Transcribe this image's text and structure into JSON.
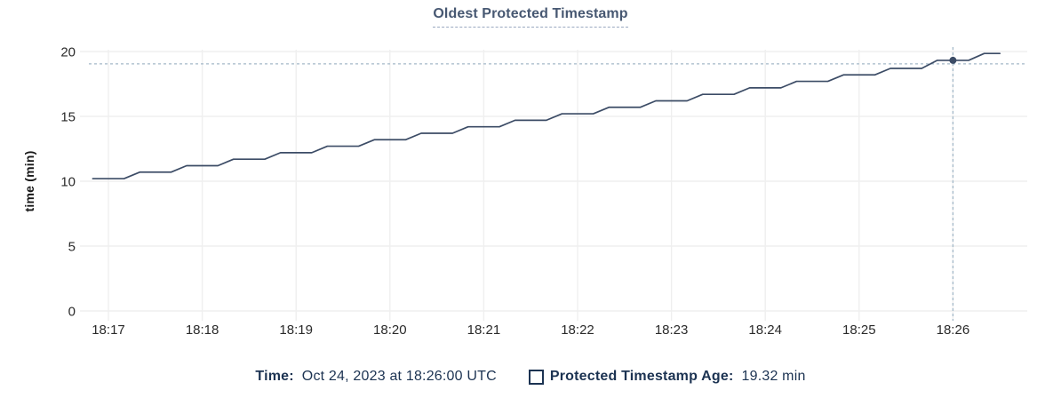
{
  "title": "Oldest Protected Timestamp",
  "legend": {
    "time_label": "Time:",
    "time_value": "Oct 24, 2023 at 18:26:00 UTC",
    "series_label": "Protected Timestamp Age:",
    "series_value": "19.32 min",
    "series_swatch": "square-outline"
  },
  "colors": {
    "line": "#3c4c66",
    "dot": "#3c4c66",
    "title_text": "#475872",
    "legend_text": "#1c3352",
    "axis_text": "#2a2a2a",
    "grid": "#efefef",
    "crosshair": "#a4b9c9",
    "background": "#ffffff"
  },
  "chart_data": {
    "type": "line",
    "title": "Oldest Protected Timestamp",
    "xlabel": "",
    "ylabel": "time (min)",
    "ylim": [
      0,
      20
    ],
    "y_ticks": [
      0,
      5,
      10,
      15,
      20
    ],
    "x_ticks": [
      "18:17",
      "18:18",
      "18:19",
      "18:20",
      "18:21",
      "18:22",
      "18:23",
      "18:24",
      "18:25",
      "18:26"
    ],
    "x_tick_interval_sec": 60,
    "x_unit": "seconds since 18:17:00 UTC",
    "grid": true,
    "legend_position": "bottom",
    "series": [
      {
        "name": "Protected Timestamp Age",
        "unit": "min",
        "points": [
          [
            -10,
            10.2
          ],
          [
            0,
            10.2
          ],
          [
            10,
            10.2
          ],
          [
            20,
            10.7
          ],
          [
            30,
            10.7
          ],
          [
            40,
            10.7
          ],
          [
            50,
            11.2
          ],
          [
            60,
            11.2
          ],
          [
            70,
            11.2
          ],
          [
            80,
            11.7
          ],
          [
            90,
            11.7
          ],
          [
            100,
            11.7
          ],
          [
            110,
            12.2
          ],
          [
            120,
            12.2
          ],
          [
            130,
            12.2
          ],
          [
            140,
            12.7
          ],
          [
            150,
            12.7
          ],
          [
            160,
            12.7
          ],
          [
            170,
            13.2
          ],
          [
            180,
            13.2
          ],
          [
            190,
            13.2
          ],
          [
            200,
            13.7
          ],
          [
            210,
            13.7
          ],
          [
            220,
            13.7
          ],
          [
            230,
            14.2
          ],
          [
            240,
            14.2
          ],
          [
            250,
            14.2
          ],
          [
            260,
            14.7
          ],
          [
            270,
            14.7
          ],
          [
            280,
            14.7
          ],
          [
            290,
            15.2
          ],
          [
            300,
            15.2
          ],
          [
            310,
            15.2
          ],
          [
            320,
            15.7
          ],
          [
            330,
            15.7
          ],
          [
            340,
            15.7
          ],
          [
            350,
            16.2
          ],
          [
            360,
            16.2
          ],
          [
            370,
            16.2
          ],
          [
            380,
            16.7
          ],
          [
            390,
            16.7
          ],
          [
            400,
            16.7
          ],
          [
            410,
            17.2
          ],
          [
            420,
            17.2
          ],
          [
            430,
            17.2
          ],
          [
            440,
            17.7
          ],
          [
            450,
            17.7
          ],
          [
            460,
            17.7
          ],
          [
            470,
            18.2
          ],
          [
            480,
            18.2
          ],
          [
            490,
            18.2
          ],
          [
            500,
            18.7
          ],
          [
            510,
            18.7
          ],
          [
            520,
            18.7
          ],
          [
            530,
            19.32
          ],
          [
            540,
            19.32
          ],
          [
            550,
            19.32
          ],
          [
            560,
            19.85
          ],
          [
            570,
            19.85
          ]
        ]
      }
    ],
    "hover": {
      "time_label": "18:26:00",
      "x_sec": 540,
      "value": 19.32,
      "hline_value": 19.05
    }
  }
}
